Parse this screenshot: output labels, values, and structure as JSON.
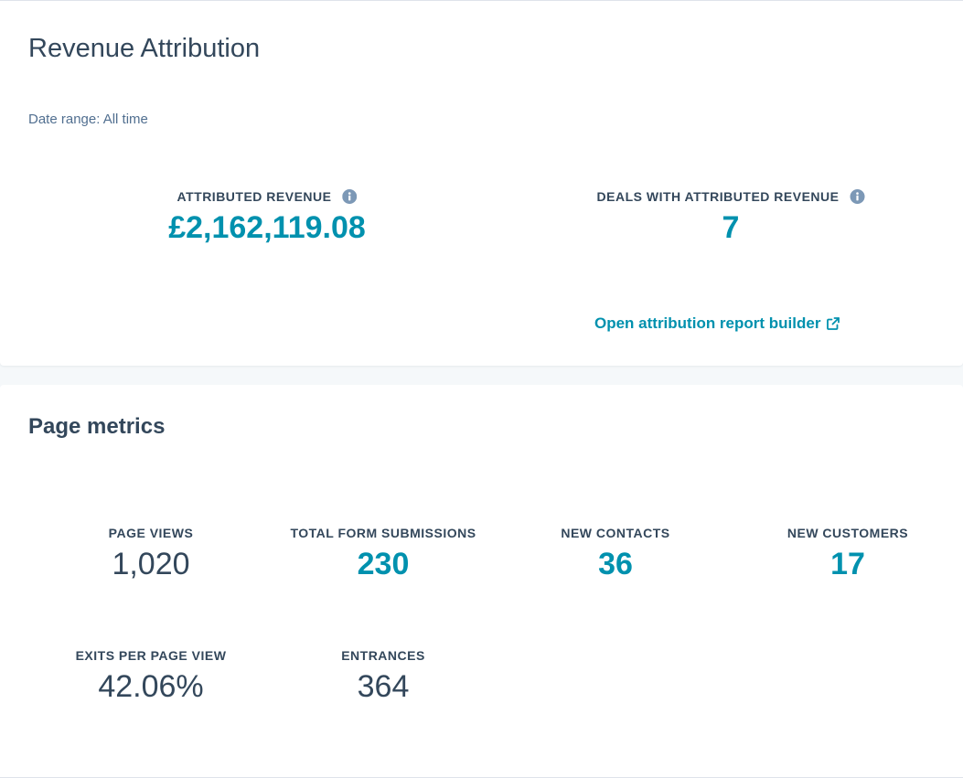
{
  "revenue_card": {
    "title": "Revenue Attribution",
    "date_range": "Date range: All time",
    "kpis": [
      {
        "label": "ATTRIBUTED REVENUE",
        "value": "£2,162,119.08",
        "icon": "info-icon"
      },
      {
        "label": "DEALS WITH ATTRIBUTED REVENUE",
        "value": "7",
        "icon": "info-icon"
      }
    ],
    "report_link": {
      "label": "Open attribution report builder",
      "icon": "external-link-icon"
    }
  },
  "metrics_card": {
    "title": "Page metrics",
    "metrics": [
      {
        "label": "PAGE VIEWS",
        "value": "1,020"
      },
      {
        "label": "TOTAL FORM SUBMISSIONS",
        "value": "230"
      },
      {
        "label": "NEW CONTACTS",
        "value": "36"
      },
      {
        "label": "NEW CUSTOMERS",
        "value": "17"
      },
      {
        "label": "EXITS PER PAGE VIEW",
        "value": "42.06%"
      },
      {
        "label": "ENTRANCES",
        "value": "364"
      }
    ]
  },
  "colors": {
    "accent": "#0091ae",
    "text": "#33475b",
    "muted": "#516f90",
    "icon": "#7c98b6",
    "background": "#f5f8fa"
  }
}
